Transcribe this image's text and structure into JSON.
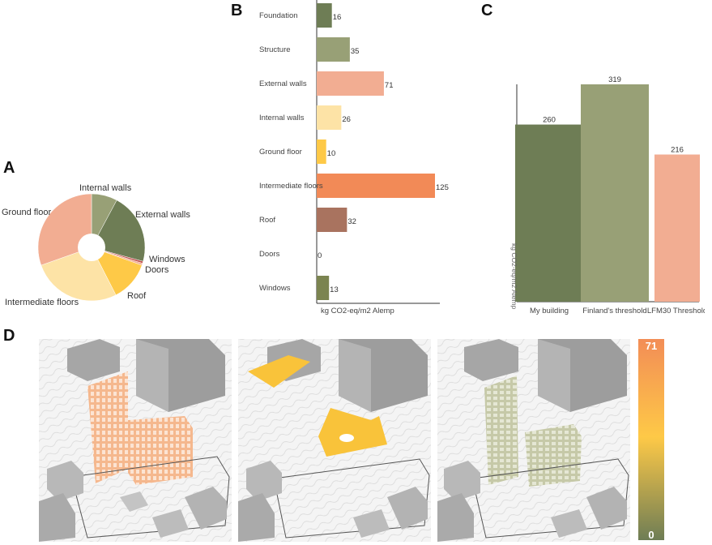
{
  "panel_labels": {
    "a": "A",
    "b": "B",
    "c": "C",
    "d": "D"
  },
  "colors": {
    "foundation": "#6e7d55",
    "structure": "#98a076",
    "external_walls": "#f2ad92",
    "internal_walls": "#fde3a6",
    "ground_floor": "#fec947",
    "intermediate_floors": "#f28a57",
    "roof": "#a9735f",
    "doors": "#c0504d",
    "windows": "#7b8450",
    "scale_top": "#f28a57",
    "scale_mid": "#fec947",
    "scale_bottom": "#6e7d55"
  },
  "chart_data": [
    {
      "id": "A",
      "type": "pie",
      "title": "",
      "hole": true,
      "slices": [
        {
          "label": "Internal walls",
          "value": 26,
          "color": "#98a076"
        },
        {
          "label": "External walls",
          "value": 71,
          "color": "#6e7d55"
        },
        {
          "label": "Windows",
          "value": 2,
          "color": "#c0504d"
        },
        {
          "label": "Doors",
          "value": 2,
          "color": "#f2ad92"
        },
        {
          "label": "Roof",
          "value": 40,
          "color": "#fec947"
        },
        {
          "label": "Intermediate floors",
          "value": 90,
          "color": "#fde3a6"
        },
        {
          "label": "Ground floor",
          "value": 101,
          "color": "#f2ad92"
        }
      ]
    },
    {
      "id": "B",
      "type": "bar",
      "orientation": "horizontal",
      "xlabel": "kg CO2-eq/m2 Alemp",
      "xlim": [
        0,
        125
      ],
      "categories": [
        "Foundation",
        "Structure",
        "External walls",
        "Internal walls",
        "Ground floor",
        "Intermediate floors",
        "Roof",
        "Doors",
        "Windows"
      ],
      "values": [
        16,
        35,
        71,
        26,
        10,
        125,
        32,
        0,
        13
      ],
      "colors": [
        "#6e7d55",
        "#98a076",
        "#f2ad92",
        "#fde3a6",
        "#fec947",
        "#f28a57",
        "#a9735f",
        "#c0504d",
        "#7b8450"
      ]
    },
    {
      "id": "C",
      "type": "bar",
      "ylabel": "kg CO2-eq/m2 Alemp",
      "ylim": [
        0,
        319
      ],
      "categories": [
        "My building",
        "Finland's threshold",
        "LFM30 Threshold"
      ],
      "values": [
        260,
        319,
        216
      ],
      "colors": [
        "#6e7d55",
        "#98a076",
        "#f2ad92"
      ]
    }
  ],
  "legend_scale": {
    "max_label": "71",
    "min_label": "0"
  }
}
